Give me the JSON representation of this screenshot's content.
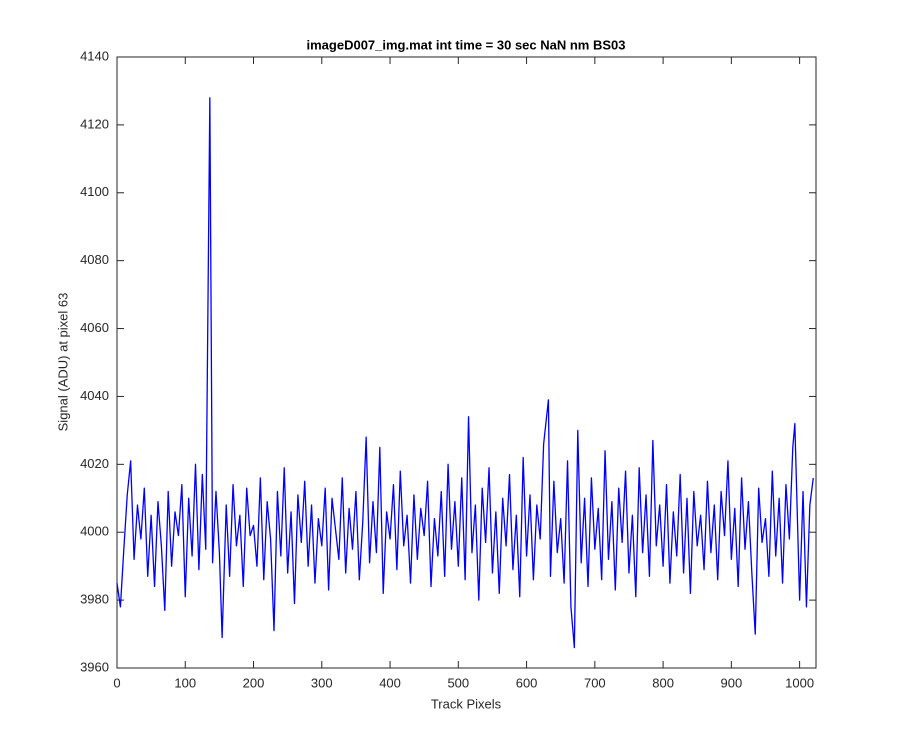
{
  "chart_data": {
    "type": "line",
    "title": "imageD007_img.mat int time = 30 sec  NaN nm BS03",
    "xlabel": "Track Pixels",
    "ylabel": "Signal (ADU) at pixel 63",
    "xlim": [
      0,
      1024
    ],
    "xticks": [
      0,
      100,
      200,
      300,
      400,
      500,
      600,
      700,
      800,
      900,
      1000
    ],
    "ylim": [
      3960,
      4140
    ],
    "yticks": [
      3960,
      3980,
      4000,
      4020,
      4040,
      4060,
      4080,
      4100,
      4120,
      4140
    ],
    "series": [
      {
        "color": "#0000ff",
        "x": [
          0,
          5,
          10,
          15,
          20,
          25,
          30,
          35,
          40,
          45,
          50,
          55,
          60,
          65,
          70,
          75,
          80,
          85,
          90,
          95,
          100,
          105,
          110,
          115,
          120,
          125,
          130,
          136,
          140,
          145,
          150,
          154,
          160,
          165,
          170,
          175,
          180,
          185,
          190,
          195,
          200,
          205,
          210,
          215,
          220,
          225,
          230,
          235,
          240,
          245,
          250,
          255,
          260,
          265,
          270,
          275,
          280,
          285,
          290,
          295,
          300,
          305,
          310,
          315,
          320,
          325,
          330,
          335,
          340,
          345,
          350,
          355,
          360,
          365,
          370,
          375,
          380,
          385,
          390,
          395,
          400,
          405,
          410,
          415,
          420,
          425,
          430,
          435,
          440,
          445,
          450,
          455,
          460,
          465,
          470,
          475,
          480,
          485,
          490,
          495,
          500,
          505,
          510,
          515,
          520,
          525,
          530,
          535,
          540,
          545,
          550,
          555,
          560,
          565,
          570,
          575,
          580,
          585,
          590,
          595,
          600,
          605,
          610,
          615,
          620,
          625,
          632,
          635,
          640,
          645,
          650,
          655,
          660,
          665,
          670,
          675,
          680,
          685,
          690,
          695,
          700,
          705,
          710,
          715,
          720,
          725,
          730,
          735,
          740,
          745,
          750,
          755,
          760,
          765,
          770,
          775,
          780,
          785,
          790,
          795,
          800,
          805,
          810,
          815,
          820,
          825,
          830,
          835,
          840,
          845,
          850,
          855,
          860,
          865,
          870,
          875,
          880,
          885,
          890,
          895,
          900,
          905,
          910,
          915,
          920,
          925,
          930,
          935,
          940,
          945,
          950,
          955,
          960,
          965,
          970,
          975,
          980,
          985,
          990,
          993,
          1000,
          1005,
          1010,
          1015,
          1020
        ],
        "values": [
          3985,
          3978,
          3995,
          4011,
          4021,
          3992,
          4008,
          3998,
          4013,
          3987,
          4005,
          3984,
          4009,
          3996,
          3977,
          4012,
          3990,
          4006,
          3999,
          4014,
          3981,
          4010,
          3993,
          4020,
          3989,
          4017,
          3995,
          4128,
          3991,
          4012,
          3994,
          3969,
          4008,
          3987,
          4014,
          3996,
          4005,
          3984,
          4013,
          3999,
          4002,
          3990,
          4016,
          3986,
          4009,
          3998,
          3971,
          4012,
          3993,
          4019,
          3988,
          4006,
          3979,
          4011,
          3997,
          4015,
          3990,
          4008,
          3985,
          4004,
          3996,
          4013,
          3983,
          4010,
          4001,
          3992,
          4016,
          3988,
          4007,
          3995,
          4012,
          3986,
          4003,
          4028,
          3991,
          4009,
          3994,
          4025,
          3982,
          4006,
          3998,
          4014,
          3989,
          4018,
          3996,
          4005,
          3985,
          4011,
          3992,
          4007,
          3999,
          4015,
          3984,
          4004,
          3993,
          4012,
          3987,
          4020,
          3995,
          4009,
          3990,
          4016,
          3986,
          4034,
          3994,
          4008,
          3980,
          4013,
          3997,
          4019,
          3988,
          4006,
          3982,
          4010,
          3996,
          4017,
          3989,
          4005,
          3981,
          4022,
          3993,
          4011,
          3986,
          4008,
          3998,
          4026,
          4039,
          3987,
          4015,
          3994,
          4004,
          3985,
          4021,
          3978,
          3966,
          4030,
          3991,
          4010,
          3984,
          4016,
          3995,
          4007,
          3986,
          4024,
          3992,
          4009,
          3983,
          4013,
          3997,
          4018,
          3988,
          4005,
          3981,
          4019,
          3994,
          4011,
          3987,
          4027,
          3996,
          4008,
          3990,
          4014,
          3985,
          4006,
          3993,
          4017,
          3988,
          4010,
          3982,
          4012,
          3996,
          4005,
          3989,
          4015,
          3994,
          4008,
          3986,
          4012,
          3999,
          4021,
          3992,
          4007,
          3984,
          4016,
          3995,
          4009,
          3988,
          3970,
          4013,
          3997,
          4004,
          3987,
          4018,
          3993,
          4010,
          3985,
          4014,
          3998,
          4025,
          4032,
          3980,
          4012,
          3978,
          4008,
          4016
        ]
      }
    ]
  }
}
